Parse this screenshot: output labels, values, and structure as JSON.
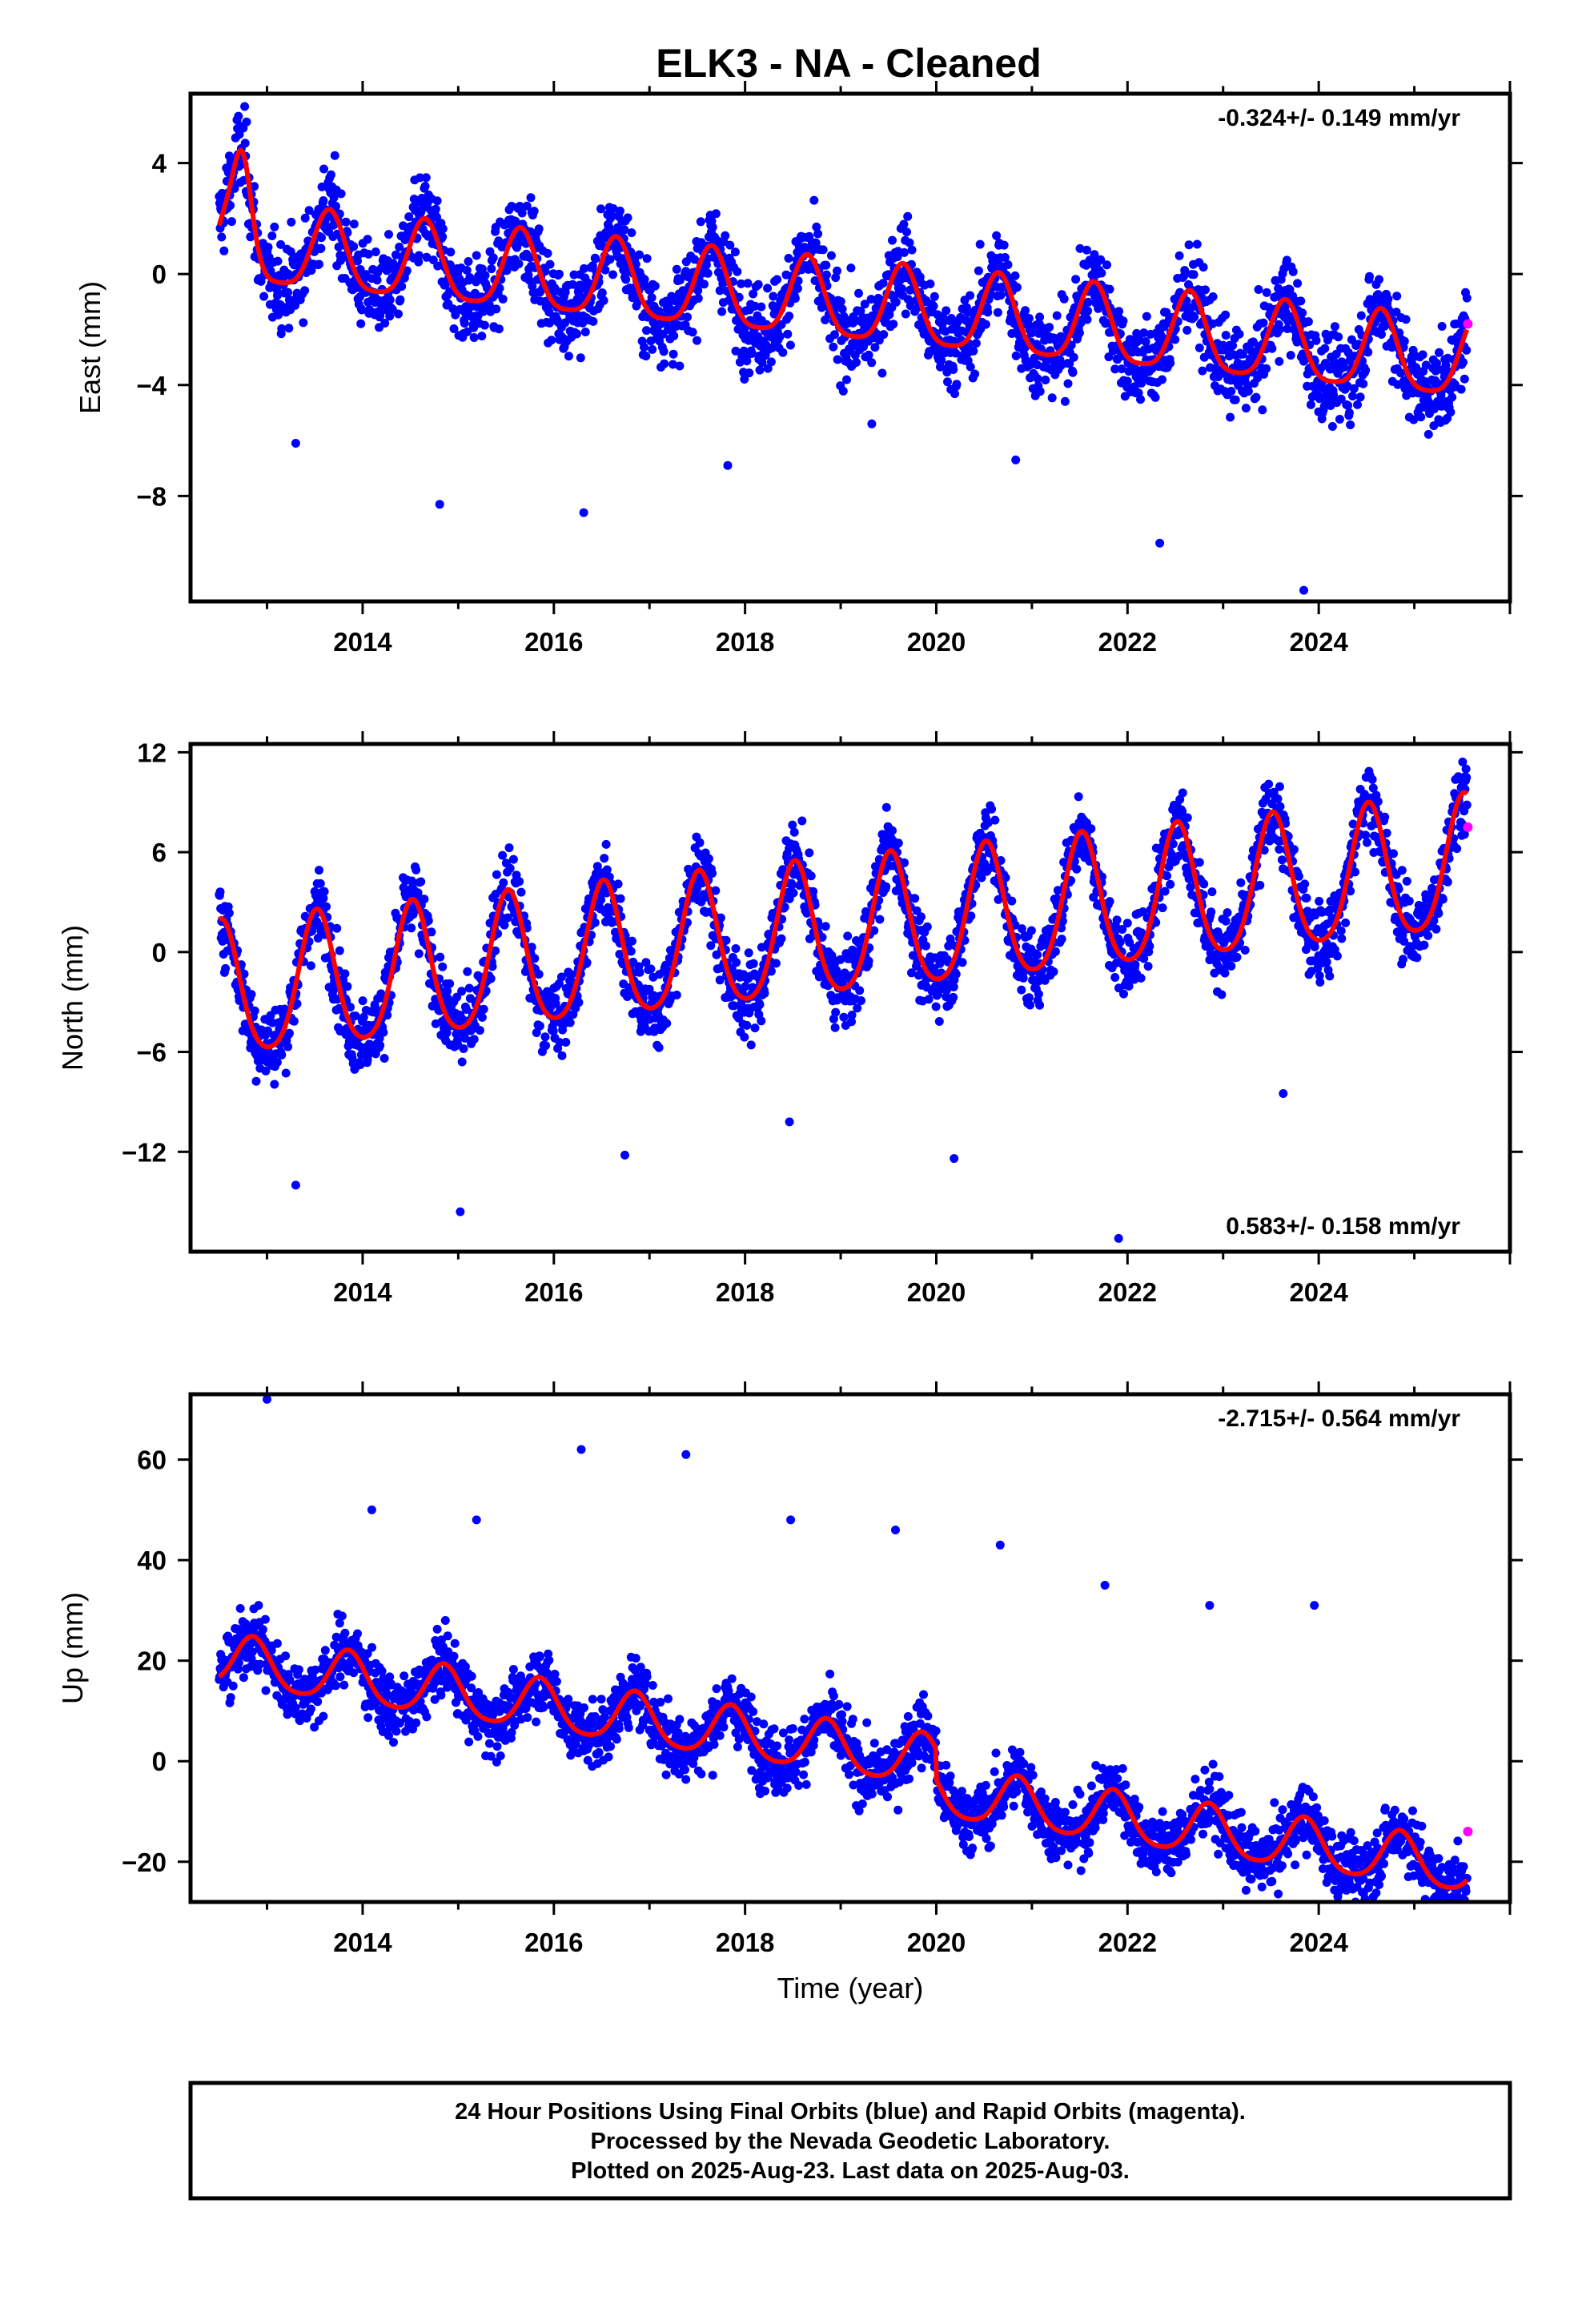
{
  "title": "ELK3  - NA - Cleaned",
  "footer": {
    "line1": "24 Hour Positions Using Final Orbits (blue) and Rapid Orbits (magenta).",
    "line2": "Processed by the Nevada Geodetic Laboratory.",
    "line3": "Plotted on 2025-Aug-23. Last data on 2025-Aug-03."
  },
  "colors": {
    "final_orbits": "#0000ff",
    "rapid_orbits": "#ff00ff",
    "model_fit": "#ff0000"
  },
  "chart_data": [
    {
      "type": "scatter",
      "ylabel": "East (mm)",
      "xlabel": "",
      "rate_label": "-0.324+/- 0.149 mm/yr",
      "rate_position": "top-right",
      "xlim": [
        2012.2,
        2026.0
      ],
      "ylim": [
        -11.8,
        6.5
      ],
      "xticks": [
        2014,
        2016,
        2018,
        2020,
        2022,
        2024
      ],
      "xtick_labels": [
        "2014",
        "2016",
        "2018",
        "2020",
        "2022",
        "2024"
      ],
      "yticks": [
        -8,
        -4,
        0,
        4
      ],
      "ytick_labels": [
        "−8",
        "−4",
        "0",
        "4"
      ],
      "grid": false,
      "model": {
        "series": "model fit (red)",
        "start": 2012.5,
        "end": 2025.55,
        "offset_mm": 1.0,
        "rate_mm_per_yr": -0.324,
        "annual_amp_mm": 1.4,
        "annual_peak_fraction": 0.65,
        "semiannual_amp_mm": 0.3,
        "step_events": [
          {
            "year": 2012.75,
            "shape": "bump",
            "size_mm": 2.2
          }
        ]
      },
      "final_orbits_scatter": {
        "start": 2012.5,
        "end": 2025.55,
        "spread_mm": 1.1,
        "outlier_lows_mm": [
          -6.1,
          -8.3,
          -8.6,
          -6.9,
          -5.4,
          -6.7,
          -9.7,
          -11.4
        ]
      },
      "rapid_orbits": [
        {
          "x": 2025.56,
          "y": -1.8
        }
      ]
    },
    {
      "type": "scatter",
      "ylabel": "North (mm)",
      "xlabel": "",
      "rate_label": "0.583+/- 0.158 mm/yr",
      "rate_position": "bottom-right",
      "xlim": [
        2012.2,
        2026.0
      ],
      "ylim": [
        -18,
        12.5
      ],
      "xticks": [
        2014,
        2016,
        2018,
        2020,
        2022,
        2024
      ],
      "xtick_labels": [
        "2014",
        "2016",
        "2018",
        "2020",
        "2022",
        "2024"
      ],
      "yticks": [
        -12,
        -6,
        0,
        6,
        12
      ],
      "ytick_labels": [
        "−12",
        "−6",
        "0",
        "6",
        "12"
      ],
      "grid": false,
      "model": {
        "series": "model fit (red)",
        "start": 2012.5,
        "end": 2025.55,
        "offset_mm": -2.6,
        "rate_mm_per_yr": 0.583,
        "annual_amp_mm": 4.0,
        "annual_peak_fraction": 0.52,
        "semiannual_amp_mm": 0.6,
        "step_events": []
      },
      "final_orbits_scatter": {
        "start": 2012.5,
        "end": 2025.55,
        "spread_mm": 1.6,
        "outlier_lows_mm": [
          -14.0,
          -15.6,
          -12.2,
          -10.2,
          -12.4,
          -17.2,
          -8.5
        ]
      },
      "rapid_orbits": [
        {
          "x": 2025.56,
          "y": 7.5
        }
      ]
    },
    {
      "type": "scatter",
      "ylabel": "Up (mm)",
      "xlabel": "Time (year)",
      "rate_label": "-2.715+/- 0.564 mm/yr",
      "rate_position": "top-right",
      "xlim": [
        2012.2,
        2026.0
      ],
      "ylim": [
        -28,
        73
      ],
      "xticks": [
        2014,
        2016,
        2018,
        2020,
        2022,
        2024
      ],
      "xtick_labels": [
        "2014",
        "2016",
        "2018",
        "2020",
        "2022",
        "2024"
      ],
      "yticks": [
        -20,
        0,
        20,
        40,
        60
      ],
      "ytick_labels": [
        "−20",
        "0",
        "20",
        "40",
        "60"
      ],
      "grid": false,
      "model": {
        "series": "model fit (red)",
        "start": 2012.5,
        "end": 2025.55,
        "offset_mm": 20.0,
        "rate_mm_per_yr": -2.715,
        "annual_amp_mm": 5.0,
        "annual_peak_fraction": 0.85,
        "semiannual_amp_mm": 0.8,
        "step_events": [
          {
            "year": 2020.0,
            "shape": "step",
            "size_mm": -6.0
          }
        ]
      },
      "final_orbits_scatter": {
        "start": 2012.5,
        "end": 2025.55,
        "spread_mm": 4.5,
        "outlier_highs_mm": [
          72,
          50,
          48,
          62,
          61,
          48,
          46,
          43,
          35,
          31,
          31
        ]
      },
      "rapid_orbits": [
        {
          "x": 2025.56,
          "y": -14
        }
      ]
    }
  ]
}
